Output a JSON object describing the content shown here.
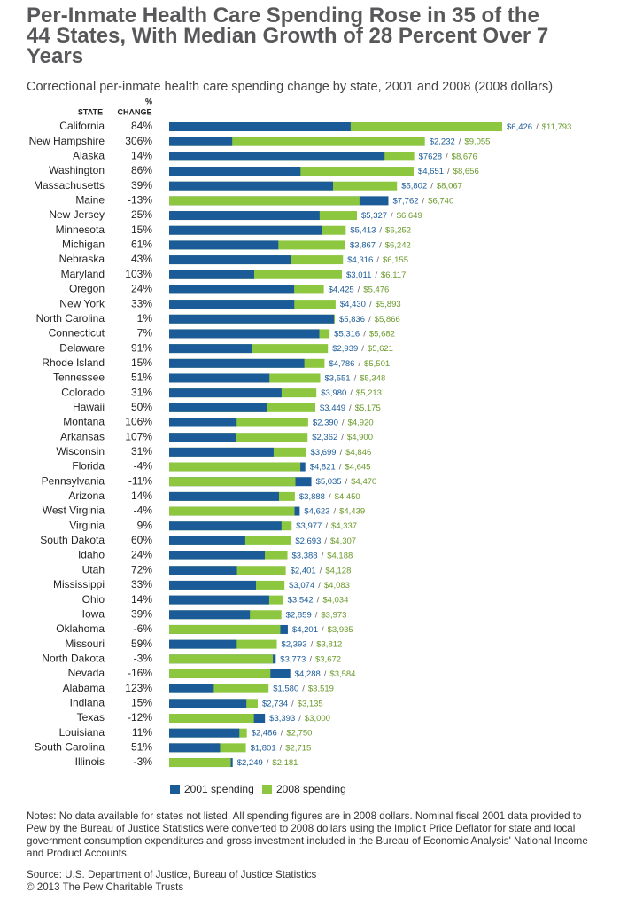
{
  "chart_data": {
    "type": "bar",
    "title": "Per-Inmate Health Care Spending Rose in 35 of the 44 States, With Median Growth of 28 Percent Over 7 Years",
    "subtitle": "Correctional per-inmate health care spending change by state, 2001 and 2008 (2008 dollars)",
    "column_headers": {
      "state": "STATE",
      "percent_sign": "%",
      "change": "CHANGE"
    },
    "categories": [
      "California",
      "New Hampshire",
      "Alaska",
      "Washington",
      "Massachusetts",
      "Maine",
      "New Jersey",
      "Minnesota",
      "Michigan",
      "Nebraska",
      "Maryland",
      "Oregon",
      "New York",
      "North Carolina",
      "Connecticut",
      "Delaware",
      "Rhode Island",
      "Tennessee",
      "Colorado",
      "Hawaii",
      "Montana",
      "Arkansas",
      "Wisconsin",
      "Florida",
      "Pennsylvania",
      "Arizona",
      "West Virginia",
      "Virginia",
      "South Dakota",
      "Idaho",
      "Utah",
      "Mississippi",
      "Ohio",
      "Iowa",
      "Oklahoma",
      "Missouri",
      "North Dakota",
      "Nevada",
      "Alabama",
      "Indiana",
      "Texas",
      "Louisiana",
      "South Carolina",
      "Illinois"
    ],
    "change": [
      "84%",
      "306%",
      "14%",
      "86%",
      "39%",
      "-13%",
      "25%",
      "15%",
      "61%",
      "43%",
      "103%",
      "24%",
      "33%",
      "1%",
      "7%",
      "91%",
      "15%",
      "51%",
      "31%",
      "50%",
      "106%",
      "107%",
      "31%",
      "-4%",
      "-11%",
      "14%",
      "-4%",
      "9%",
      "60%",
      "24%",
      "72%",
      "33%",
      "14%",
      "39%",
      "-6%",
      "59%",
      "-3%",
      "-16%",
      "123%",
      "15%",
      "-12%",
      "11%",
      "51%",
      "-3%"
    ],
    "label_separator": "/",
    "series": [
      {
        "name": "2001 spending",
        "color": "#1b5b98",
        "values": [
          6426,
          2232,
          7628,
          4651,
          5802,
          7762,
          5327,
          5413,
          3867,
          4316,
          3011,
          4425,
          4430,
          5836,
          5316,
          2939,
          4786,
          3551,
          3980,
          3449,
          2390,
          2362,
          3699,
          4821,
          5035,
          3888,
          4623,
          3977,
          2693,
          3388,
          2401,
          3074,
          3542,
          2859,
          4201,
          2393,
          3773,
          4288,
          1580,
          2734,
          3393,
          2486,
          1801,
          2249
        ],
        "value_labels": [
          "$6,426",
          "$2,232",
          "$7628",
          "$4,651",
          "$5,802",
          "$7,762",
          "$5,327",
          "$5,413",
          "$3,867",
          "$4,316",
          "$3,011",
          "$4,425",
          "$4,430",
          "$5,836",
          "$5,316",
          "$2,939",
          "$4,786",
          "$3,551",
          "$3,980",
          "$3,449",
          "$2,390",
          "$2,362",
          "$3,699",
          "$4,821",
          "$5,035",
          "$3,888",
          "$4,623",
          "$3,977",
          "$2,693",
          "$3,388",
          "$2,401",
          "$3,074",
          "$3,542",
          "$2,859",
          "$4,201",
          "$2,393",
          "$3,773",
          "$4,288",
          "$1,580",
          "$2,734",
          "$3,393",
          "$2,486",
          "$1,801",
          "$2,249"
        ]
      },
      {
        "name": "2008 spending",
        "color": "#8dc63f",
        "values": [
          11793,
          9055,
          8676,
          8656,
          8067,
          6740,
          6649,
          6252,
          6242,
          6155,
          6117,
          5476,
          5893,
          5866,
          5682,
          5621,
          5501,
          5348,
          5213,
          5175,
          4920,
          4900,
          4846,
          4645,
          4470,
          4450,
          4439,
          4337,
          4307,
          4188,
          4128,
          4083,
          4034,
          3973,
          3935,
          3812,
          3672,
          3584,
          3519,
          3135,
          3000,
          2750,
          2715,
          2181
        ],
        "value_labels": [
          "$11,793",
          "$9,055",
          "$8,676",
          "$8,656",
          "$8,067",
          "$6,740",
          "$6,649",
          "$6,252",
          "$6,242",
          "$6,155",
          "$6,117",
          "$5,476",
          "$5,893",
          "$5,866",
          "$5,682",
          "$5,621",
          "$5,501",
          "$5,348",
          "$5,213",
          "$5,175",
          "$4,920",
          "$4,900",
          "$4,846",
          "$4,645",
          "$4,470",
          "$4,450",
          "$4,439",
          "$4,337",
          "$4,307",
          "$4,188",
          "$4,128",
          "$4,083",
          "$4,034",
          "$3,973",
          "$3,935",
          "$3,812",
          "$3,672",
          "$3,584",
          "$3,519",
          "$3,135",
          "$3,000",
          "$2,750",
          "$2,715",
          "$2,181"
        ]
      }
    ],
    "notes": "Notes: No data available for states not listed. All spending figures are in 2008 dollars. Nominal fiscal 2001 data provided to Pew by the Bureau of Justice Statistics were converted to 2008 dollars using the Implicit Price Deflator for state and local government consumption expenditures and gross investment included in the Bureau of Economic Analysis' National Income and Product Accounts.",
    "source": "Source: U.S. Department of Justice, Bureau of Justice Statistics",
    "copyright": "© 2013 The Pew Charitable Trusts"
  }
}
